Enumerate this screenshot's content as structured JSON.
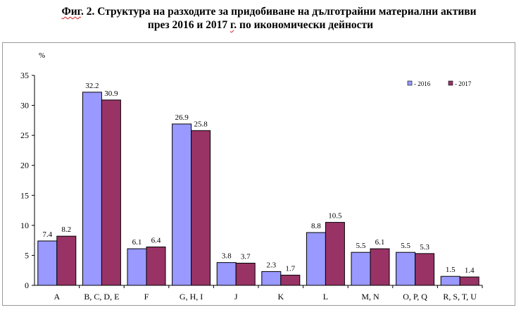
{
  "title_line1_prefix": "Фиг",
  "title_line1_rest": ". 2. Структура на разходите за придобиване на дълготрайни материални активи",
  "title_line2_a": "през 2016 и 2017 ",
  "title_line2_g": "г",
  "title_line2_b": ". по икономически дейности",
  "chart_data": {
    "type": "bar",
    "title": "Фиг. 2. Структура на разходите за придобиване на дълготрайни материални активи през 2016 и 2017 г. по икономически дейности",
    "ylabel": "%",
    "xlabel": "",
    "ylim": [
      0,
      35
    ],
    "yticks": [
      0,
      5,
      10,
      15,
      20,
      25,
      30,
      35
    ],
    "grid": false,
    "legend_position": "top-right",
    "categories": [
      "A",
      "B, C, D, E",
      "F",
      "G, H, I",
      "J",
      "K",
      "L",
      "M, N",
      "O, P, Q",
      "R, S, T, U"
    ],
    "series": [
      {
        "name": "- 2016",
        "color": "#9999ff",
        "values": [
          7.4,
          32.2,
          6.1,
          26.9,
          3.8,
          2.3,
          8.8,
          5.5,
          5.5,
          1.5
        ]
      },
      {
        "name": "- 2017",
        "color": "#993366",
        "values": [
          8.2,
          30.9,
          6.4,
          25.8,
          3.7,
          1.7,
          10.5,
          6.1,
          5.3,
          1.4
        ]
      }
    ]
  }
}
